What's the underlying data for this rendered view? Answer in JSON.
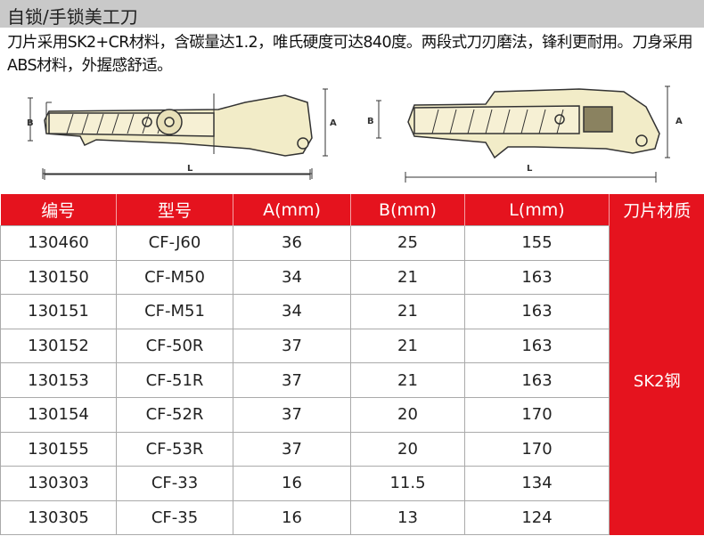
{
  "title": "自锁/手锁美工刀",
  "description": "刀片采用SK2+CR材料，含碳量达1.2，唯氏硬度可达840度。两段式刀刃磨法，锋利更耐用。刀身采用ABS材料，外握感舒适。",
  "diagram": {
    "labels": {
      "a": "A",
      "b": "B",
      "l": "L"
    },
    "colors": {
      "body": "#f2ecc8",
      "outline": "#333333"
    }
  },
  "table": {
    "headers": [
      "编号",
      "型号",
      "A(mm)",
      "B(mm)",
      "L(mm)",
      "刀片材质"
    ],
    "material": "SK2钢",
    "rows": [
      [
        "130460",
        "CF-J60",
        "36",
        "25",
        "155"
      ],
      [
        "130150",
        "CF-M50",
        "34",
        "21",
        "163"
      ],
      [
        "130151",
        "CF-M51",
        "34",
        "21",
        "163"
      ],
      [
        "130152",
        "CF-50R",
        "37",
        "21",
        "163"
      ],
      [
        "130153",
        "CF-51R",
        "37",
        "21",
        "163"
      ],
      [
        "130154",
        "CF-52R",
        "37",
        "20",
        "170"
      ],
      [
        "130155",
        "CF-53R",
        "37",
        "20",
        "170"
      ],
      [
        "130303",
        "CF-33",
        "16",
        "11.5",
        "134"
      ],
      [
        "130305",
        "CF-35",
        "16",
        "13",
        "124"
      ]
    ],
    "header_color": "#e5131e"
  }
}
